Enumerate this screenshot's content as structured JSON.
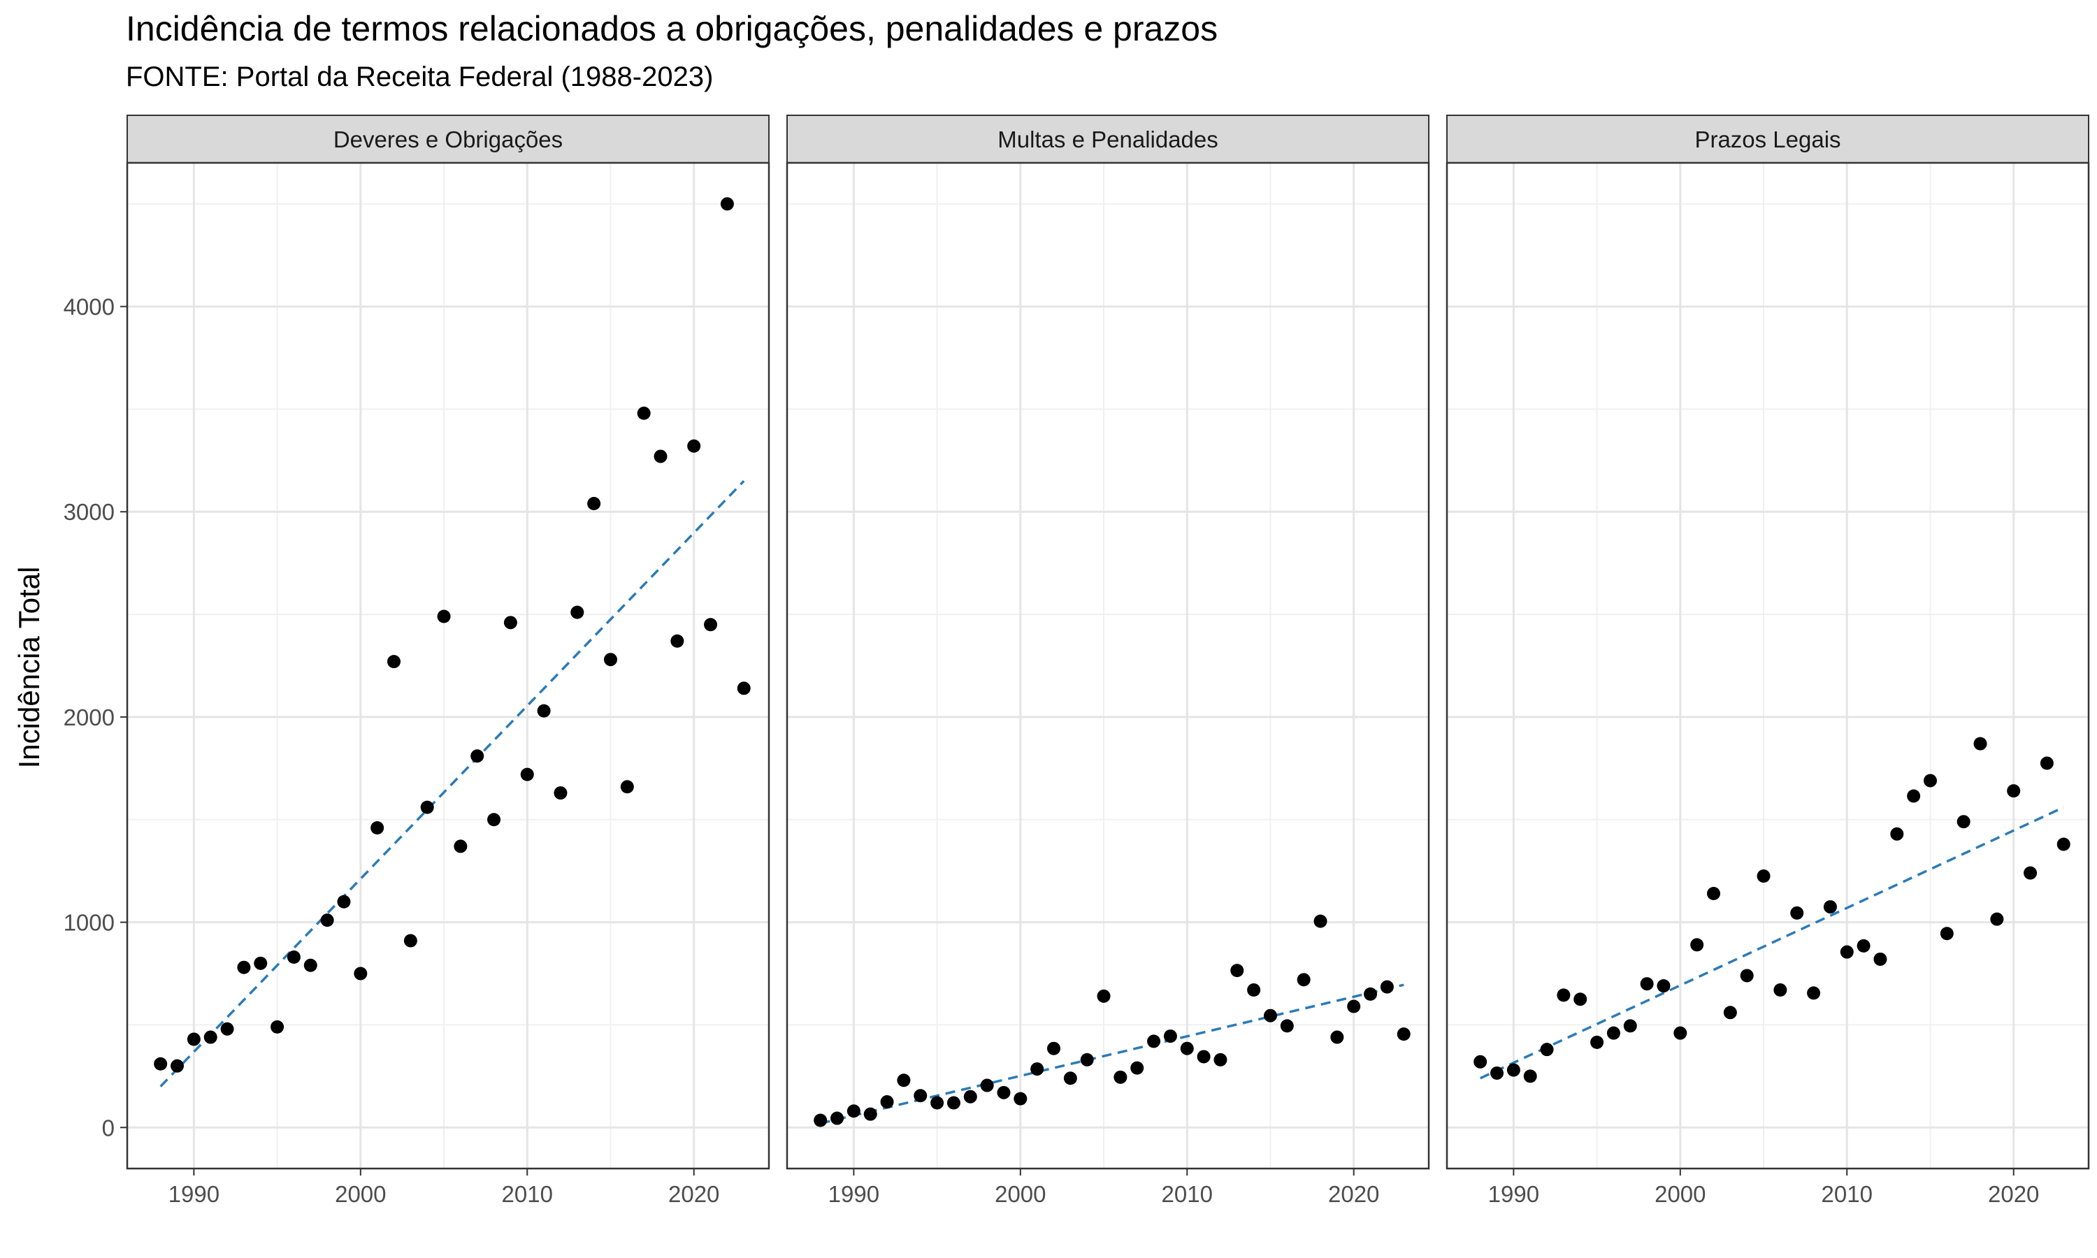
{
  "chart_data": {
    "type": "scatter",
    "title": "Incidência de termos relacionados a obrigações, penalidades e prazos",
    "subtitle": "FONTE: Portal da Receita Federal (1988-2023)",
    "xlabel": "",
    "ylabel": "Incidência Total",
    "xlim": [
      1986,
      2024.5
    ],
    "ylim": [
      -200,
      4700
    ],
    "x_ticks": [
      1990,
      2000,
      2010,
      2020
    ],
    "y_ticks": [
      0,
      1000,
      2000,
      3000,
      4000
    ],
    "grid": true,
    "legend": "none",
    "point_color": "#000000",
    "trend_color": "#2C7BB6",
    "panels": [
      {
        "name": "Deveres e Obrigações",
        "x": [
          1988,
          1989,
          1990,
          1991,
          1992,
          1993,
          1994,
          1995,
          1996,
          1997,
          1998,
          1999,
          2000,
          2001,
          2002,
          2003,
          2004,
          2005,
          2006,
          2007,
          2008,
          2009,
          2010,
          2011,
          2012,
          2013,
          2014,
          2015,
          2016,
          2017,
          2018,
          2019,
          2020,
          2021,
          2022,
          2023
        ],
        "y": [
          310,
          300,
          430,
          440,
          480,
          780,
          800,
          490,
          830,
          790,
          1010,
          1100,
          750,
          1460,
          2270,
          910,
          1560,
          2490,
          1370,
          1810,
          1500,
          2460,
          1720,
          2030,
          1630,
          2510,
          3040,
          2280,
          1660,
          3480,
          3270,
          2370,
          3320,
          2450,
          4500,
          2140
        ],
        "trend": [
          [
            1988,
            200
          ],
          [
            2023,
            3150
          ]
        ]
      },
      {
        "name": "Multas e Penalidades",
        "x": [
          1988,
          1989,
          1990,
          1991,
          1992,
          1993,
          1994,
          1995,
          1996,
          1997,
          1998,
          1999,
          2000,
          2001,
          2002,
          2003,
          2004,
          2005,
          2006,
          2007,
          2008,
          2009,
          2010,
          2011,
          2012,
          2013,
          2014,
          2015,
          2016,
          2017,
          2018,
          2019,
          2020,
          2021,
          2022,
          2023
        ],
        "y": [
          35,
          45,
          80,
          65,
          125,
          230,
          155,
          120,
          120,
          150,
          205,
          170,
          140,
          285,
          385,
          240,
          330,
          640,
          245,
          290,
          420,
          445,
          385,
          345,
          330,
          765,
          670,
          545,
          495,
          720,
          1005,
          440,
          590,
          650,
          685,
          455
        ],
        "trend": [
          [
            1988,
            20
          ],
          [
            2023,
            695
          ]
        ]
      },
      {
        "name": "Prazos Legais",
        "x": [
          1988,
          1989,
          1990,
          1991,
          1992,
          1993,
          1994,
          1995,
          1996,
          1997,
          1998,
          1999,
          2000,
          2001,
          2002,
          2003,
          2004,
          2005,
          2006,
          2007,
          2008,
          2009,
          2010,
          2011,
          2012,
          2013,
          2014,
          2015,
          2016,
          2017,
          2018,
          2019,
          2020,
          2021,
          2022,
          2023
        ],
        "y": [
          320,
          265,
          280,
          250,
          380,
          645,
          625,
          415,
          460,
          495,
          700,
          690,
          460,
          890,
          1140,
          560,
          740,
          1225,
          670,
          1045,
          655,
          1075,
          855,
          885,
          820,
          1430,
          1615,
          1690,
          945,
          1490,
          1870,
          1015,
          1640,
          1240,
          1775,
          1380
        ],
        "trend": [
          [
            1988,
            240
          ],
          [
            2023,
            1560
          ]
        ]
      }
    ]
  }
}
